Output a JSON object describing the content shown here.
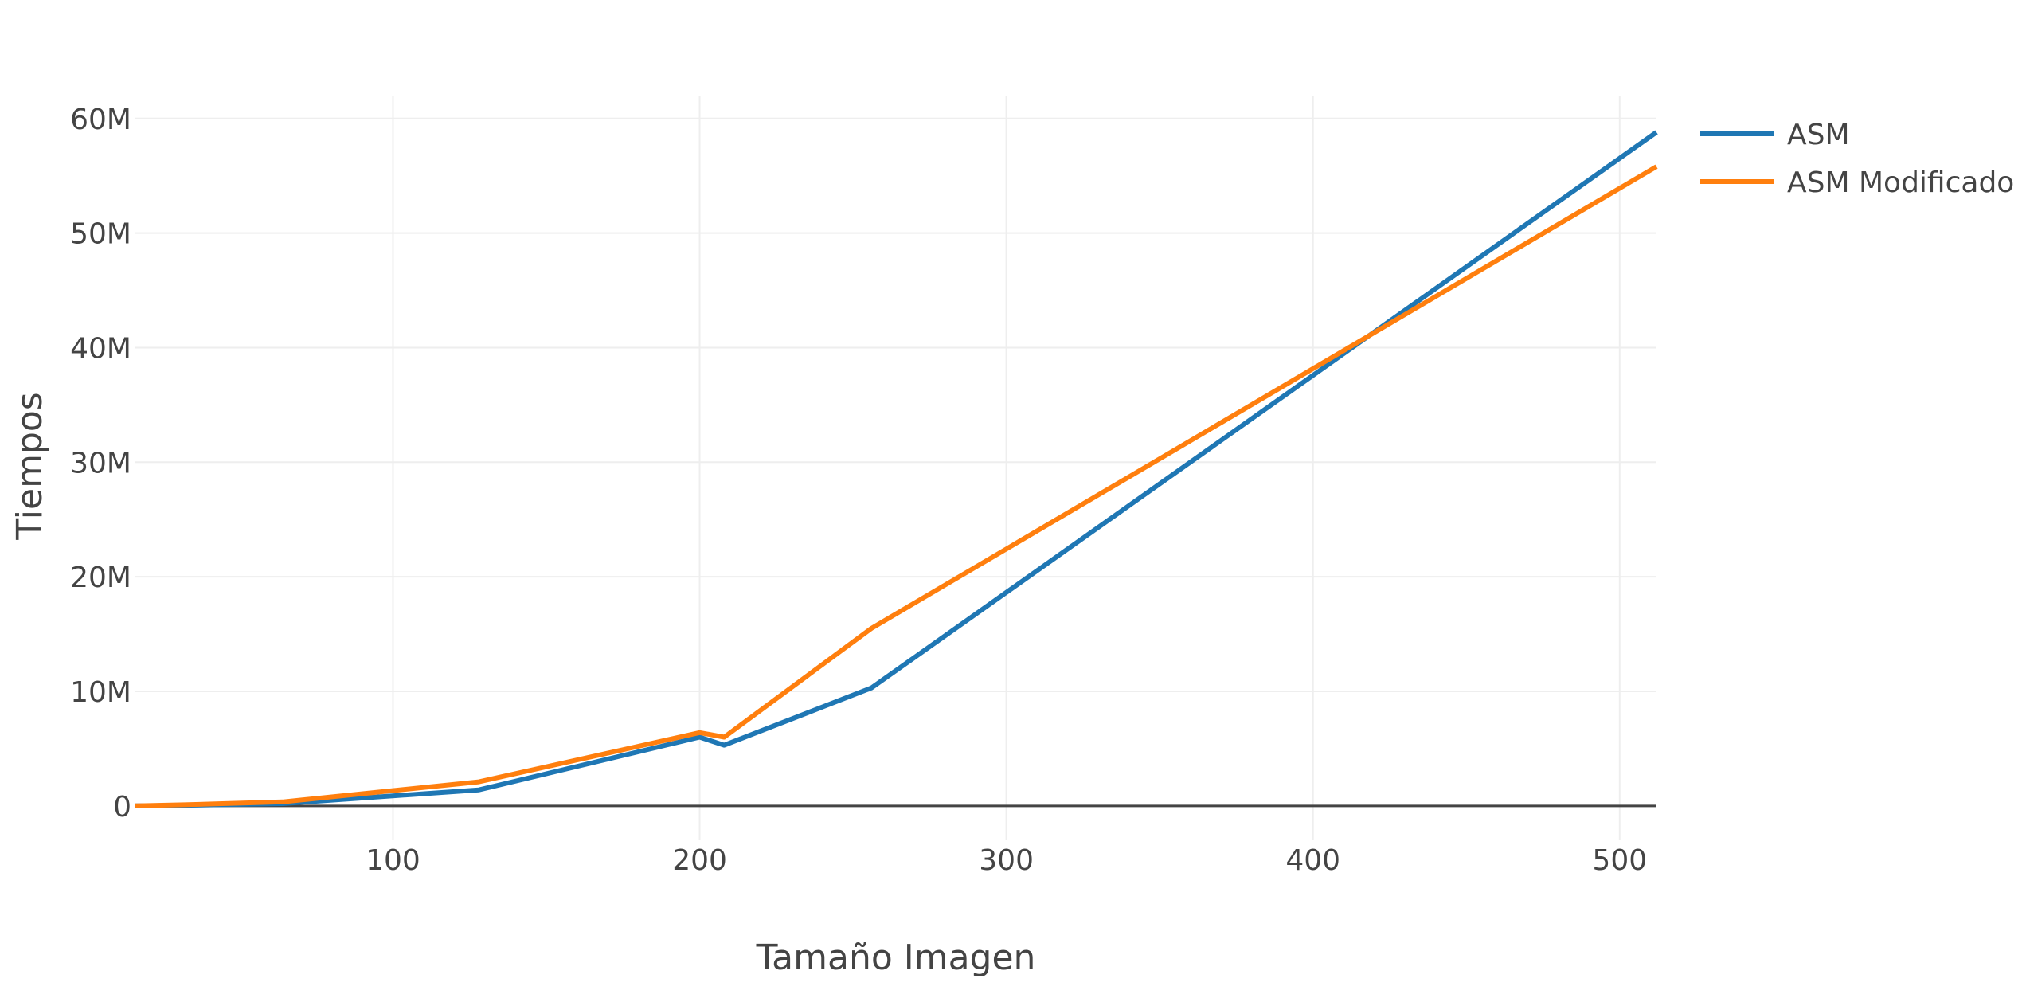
{
  "chart_data": {
    "type": "line",
    "title": "",
    "xlabel": "Tamaño Imagen",
    "ylabel": "Tiempos",
    "xlim": [
      16,
      512
    ],
    "ylim": [
      -3000000,
      62000000
    ],
    "x_ticks": [
      100,
      200,
      300,
      400,
      500
    ],
    "x_tick_labels": [
      "100",
      "200",
      "300",
      "400",
      "500"
    ],
    "y_ticks": [
      0,
      10000000,
      20000000,
      30000000,
      40000000,
      50000000,
      60000000
    ],
    "y_tick_labels": [
      "0",
      "10M",
      "20M",
      "30M",
      "40M",
      "50M",
      "60M"
    ],
    "grid": true,
    "legend": "top-right",
    "series": [
      {
        "name": "ASM",
        "color": "#1f77b4",
        "x": [
          16,
          32,
          64,
          128,
          200,
          208,
          256,
          512
        ],
        "y": [
          0,
          50000,
          200000,
          1400000,
          6000000,
          5300000,
          10300000,
          58800000
        ]
      },
      {
        "name": "ASM Modificado",
        "color": "#ff7f0e",
        "x": [
          16,
          32,
          64,
          128,
          200,
          208,
          256,
          512
        ],
        "y": [
          0,
          100000,
          350000,
          2100000,
          6400000,
          6000000,
          15500000,
          55800000
        ]
      }
    ]
  }
}
